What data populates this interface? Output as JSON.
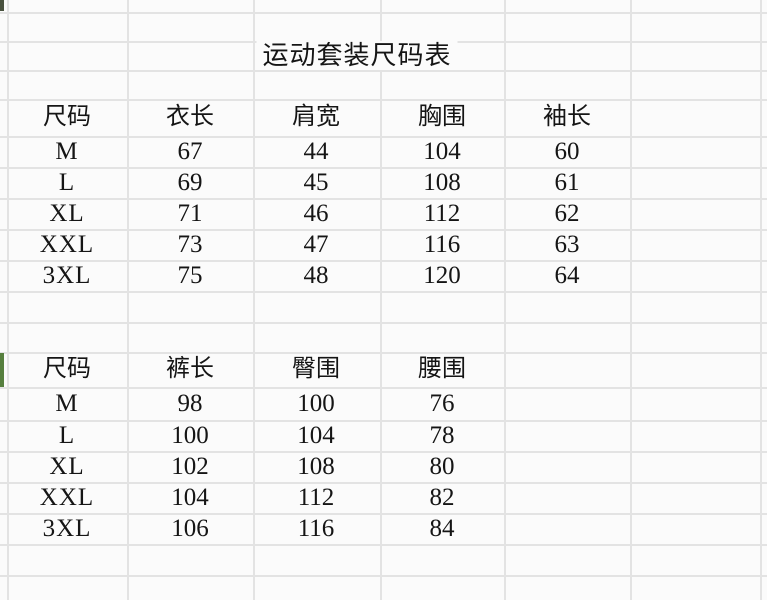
{
  "page": {
    "title": "运动套装尺码表",
    "colors": {
      "background": "#fbfbfb",
      "gridline": "#e3e3e3",
      "text": "#151515",
      "row_marker_green": "#567f3e",
      "corner_marker": "#49523f"
    }
  },
  "size_chart_top": {
    "headers": [
      "尺码",
      "衣长",
      "肩宽",
      "胸围",
      "袖长"
    ],
    "rows": [
      [
        "M",
        "67",
        "44",
        "104",
        "60"
      ],
      [
        "L",
        "69",
        "45",
        "108",
        "61"
      ],
      [
        "XL",
        "71",
        "46",
        "112",
        "62"
      ],
      [
        "XXL",
        "73",
        "47",
        "116",
        "63"
      ],
      [
        "3XL",
        "75",
        "48",
        "120",
        "64"
      ]
    ]
  },
  "size_chart_bottom": {
    "headers": [
      "尺码",
      "裤长",
      "臀围",
      "腰围"
    ],
    "rows": [
      [
        "M",
        "98",
        "100",
        "76"
      ],
      [
        "L",
        "100",
        "104",
        "78"
      ],
      [
        "XL",
        "102",
        "108",
        "80"
      ],
      [
        "XXL",
        "104",
        "112",
        "82"
      ],
      [
        "3XL",
        "106",
        "116",
        "84"
      ]
    ]
  }
}
